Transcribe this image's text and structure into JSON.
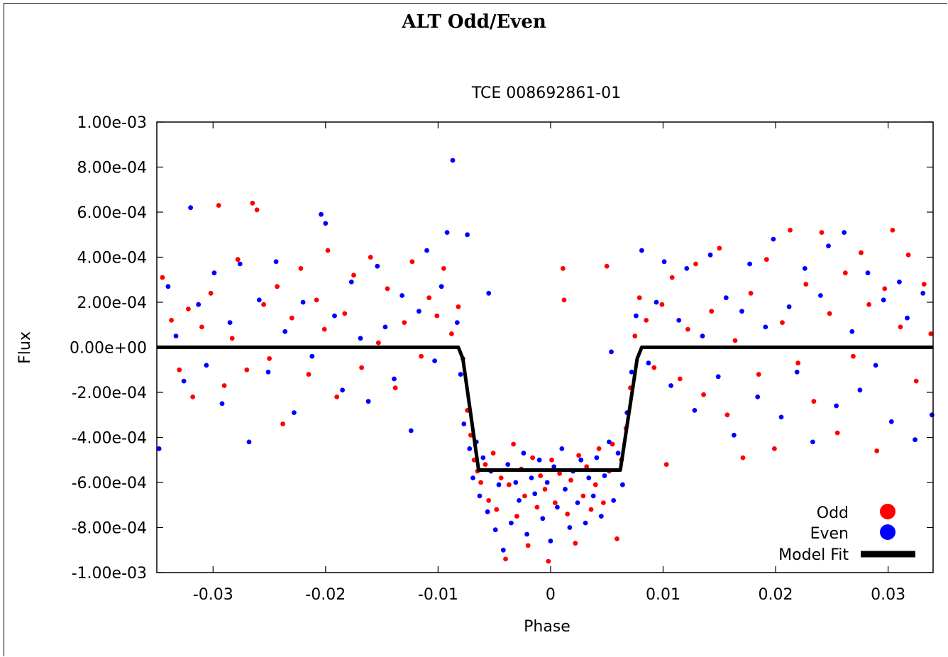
{
  "page": {
    "title": "ALT Odd/Even"
  },
  "chart_data": {
    "type": "scatter",
    "title": "TCE 008692861-01",
    "xlabel": "Phase",
    "ylabel": "Flux",
    "xlim": [
      -0.035,
      0.034
    ],
    "ylim": [
      -0.001,
      0.001
    ],
    "xticks": [
      -0.03,
      -0.02,
      -0.01,
      0,
      0.01,
      0.02,
      0.03
    ],
    "xtick_labels": [
      "-0.03",
      "-0.02",
      "-0.01",
      "0",
      "0.01",
      "0.02",
      "0.03"
    ],
    "yticks": [
      0.001,
      0.0008,
      0.0006,
      0.0004,
      0.0002,
      0,
      -0.0002,
      -0.0004,
      -0.0006,
      -0.0008,
      -0.001
    ],
    "ytick_labels": [
      "1.00e-03",
      "8.00e-04",
      "6.00e-04",
      "4.00e-04",
      "2.00e-04",
      "0.00e+00",
      "-2.00e-04",
      "-4.00e-04",
      "-6.00e-04",
      "-8.00e-04",
      "-1.00e-03"
    ],
    "grid": false,
    "legend_position": "bottom-right",
    "colors": {
      "odd": "#ff0000",
      "even": "#0000ff",
      "model": "#000000"
    },
    "series": [
      {
        "name": "Odd",
        "kind": "points",
        "color": "#ff0000",
        "points": [
          [
            -0.0345,
            0.00031
          ],
          [
            -0.0337,
            0.00012
          ],
          [
            -0.033,
            -0.0001
          ],
          [
            -0.0322,
            0.00017
          ],
          [
            -0.0318,
            -0.00022
          ],
          [
            -0.031,
            9e-05
          ],
          [
            -0.0302,
            0.00024
          ],
          [
            -0.0295,
            0.00063
          ],
          [
            -0.029,
            -0.00017
          ],
          [
            -0.0283,
            4e-05
          ],
          [
            -0.0278,
            0.00039
          ],
          [
            -0.027,
            -0.0001
          ],
          [
            -0.0265,
            0.00064
          ],
          [
            -0.0261,
            0.00061
          ],
          [
            -0.0255,
            0.00019
          ],
          [
            -0.025,
            -5e-05
          ],
          [
            -0.0243,
            0.00027
          ],
          [
            -0.0238,
            -0.00034
          ],
          [
            -0.023,
            0.00013
          ],
          [
            -0.0222,
            0.00035
          ],
          [
            -0.0215,
            -0.00012
          ],
          [
            -0.0208,
            0.00021
          ],
          [
            -0.0201,
            8e-05
          ],
          [
            -0.0198,
            0.00043
          ],
          [
            -0.019,
            -0.00022
          ],
          [
            -0.0183,
            0.00015
          ],
          [
            -0.0175,
            0.00032
          ],
          [
            -0.0168,
            -9e-05
          ],
          [
            -0.016,
            0.0004
          ],
          [
            -0.0153,
            2e-05
          ],
          [
            -0.0145,
            0.00026
          ],
          [
            -0.0138,
            -0.00018
          ],
          [
            -0.013,
            0.00011
          ],
          [
            -0.0123,
            0.00038
          ],
          [
            -0.0115,
            -4e-05
          ],
          [
            -0.0108,
            0.00022
          ],
          [
            -0.0101,
            0.00014
          ],
          [
            -0.0095,
            0.00035
          ],
          [
            -0.0088,
            6e-05
          ],
          [
            -0.0082,
            0.00018
          ],
          [
            -0.0078,
            -5e-05
          ],
          [
            -0.0074,
            -0.00028
          ],
          [
            -0.0071,
            -0.00039
          ],
          [
            -0.0068,
            -0.0005
          ],
          [
            -0.0065,
            -0.00055
          ],
          [
            -0.0062,
            -0.0006
          ],
          [
            -0.0058,
            -0.00052
          ],
          [
            -0.0055,
            -0.00068
          ],
          [
            -0.0051,
            -0.00047
          ],
          [
            -0.0048,
            -0.00072
          ],
          [
            -0.0044,
            -0.00058
          ],
          [
            -0.004,
            -0.00094
          ],
          [
            -0.0037,
            -0.00061
          ],
          [
            -0.0033,
            -0.00043
          ],
          [
            -0.003,
            -0.00075
          ],
          [
            -0.0026,
            -0.00054
          ],
          [
            -0.0023,
            -0.00066
          ],
          [
            -0.002,
            -0.00088
          ],
          [
            -0.0016,
            -0.00049
          ],
          [
            -0.0012,
            -0.00071
          ],
          [
            -0.0009,
            -0.00057
          ],
          [
            -0.0005,
            -0.00063
          ],
          [
            -0.0002,
            -0.00095
          ],
          [
            0.0001,
            -0.0005
          ],
          [
            0.0004,
            -0.00069
          ],
          [
            0.0008,
            -0.00056
          ],
          [
            0.0011,
            0.00035
          ],
          [
            0.0012,
            0.00021
          ],
          [
            0.0015,
            -0.00074
          ],
          [
            0.0018,
            -0.00059
          ],
          [
            0.0022,
            -0.00087
          ],
          [
            0.0025,
            -0.00048
          ],
          [
            0.0029,
            -0.00066
          ],
          [
            0.0032,
            -0.00053
          ],
          [
            0.0036,
            -0.00072
          ],
          [
            0.004,
            -0.00061
          ],
          [
            0.0043,
            -0.00045
          ],
          [
            0.0047,
            -0.00069
          ],
          [
            0.005,
            0.00036
          ],
          [
            0.0052,
            -0.00055
          ],
          [
            0.0055,
            -0.00043
          ],
          [
            0.0059,
            -0.00085
          ],
          [
            0.0063,
            -0.0005
          ],
          [
            0.0067,
            -0.00036
          ],
          [
            0.0071,
            -0.00018
          ],
          [
            0.0075,
            5e-05
          ],
          [
            0.0079,
            0.00022
          ],
          [
            0.0085,
            0.00012
          ],
          [
            0.0092,
            -9e-05
          ],
          [
            0.0099,
            0.00019
          ],
          [
            0.0103,
            -0.00052
          ],
          [
            0.0108,
            0.00031
          ],
          [
            0.0115,
            -0.00014
          ],
          [
            0.0122,
            8e-05
          ],
          [
            0.0129,
            0.00037
          ],
          [
            0.0136,
            -0.00021
          ],
          [
            0.0143,
            0.00016
          ],
          [
            0.015,
            0.00044
          ],
          [
            0.0157,
            -0.0003
          ],
          [
            0.0164,
            3e-05
          ],
          [
            0.0171,
            -0.00049
          ],
          [
            0.0178,
            0.00024
          ],
          [
            0.0185,
            -0.00012
          ],
          [
            0.0192,
            0.00039
          ],
          [
            0.0199,
            -0.00045
          ],
          [
            0.0206,
            0.00011
          ],
          [
            0.0213,
            0.00052
          ],
          [
            0.022,
            -7e-05
          ],
          [
            0.0227,
            0.00028
          ],
          [
            0.0234,
            -0.00024
          ],
          [
            0.0241,
            0.00051
          ],
          [
            0.0248,
            0.00015
          ],
          [
            0.0255,
            -0.00038
          ],
          [
            0.0262,
            0.00033
          ],
          [
            0.0269,
            -4e-05
          ],
          [
            0.0276,
            0.00042
          ],
          [
            0.0283,
            0.00019
          ],
          [
            0.029,
            -0.00046
          ],
          [
            0.0297,
            0.00026
          ],
          [
            0.0304,
            0.00052
          ],
          [
            0.0311,
            9e-05
          ],
          [
            0.0318,
            0.00041
          ],
          [
            0.0325,
            -0.00015
          ],
          [
            0.0332,
            0.00028
          ],
          [
            0.0338,
            6e-05
          ]
        ]
      },
      {
        "name": "Even",
        "kind": "points",
        "color": "#0000ff",
        "points": [
          [
            -0.0348,
            -0.00045
          ],
          [
            -0.034,
            0.00027
          ],
          [
            -0.0333,
            5e-05
          ],
          [
            -0.0326,
            -0.00015
          ],
          [
            -0.032,
            0.00062
          ],
          [
            -0.0313,
            0.00019
          ],
          [
            -0.0306,
            -8e-05
          ],
          [
            -0.0299,
            0.00033
          ],
          [
            -0.0292,
            -0.00025
          ],
          [
            -0.0285,
            0.00011
          ],
          [
            -0.0276,
            0.00037
          ],
          [
            -0.0268,
            -0.00042
          ],
          [
            -0.0259,
            0.00021
          ],
          [
            -0.0251,
            -0.00011
          ],
          [
            -0.0244,
            0.00038
          ],
          [
            -0.0236,
            7e-05
          ],
          [
            -0.0228,
            -0.00029
          ],
          [
            -0.022,
            0.0002
          ],
          [
            -0.0212,
            -4e-05
          ],
          [
            -0.0204,
            0.00059
          ],
          [
            -0.02,
            0.00055
          ],
          [
            -0.0192,
            0.00014
          ],
          [
            -0.0185,
            -0.00019
          ],
          [
            -0.0177,
            0.00029
          ],
          [
            -0.0169,
            4e-05
          ],
          [
            -0.0162,
            -0.00024
          ],
          [
            -0.0154,
            0.00036
          ],
          [
            -0.0147,
            9e-05
          ],
          [
            -0.0139,
            -0.00014
          ],
          [
            -0.0132,
            0.00023
          ],
          [
            -0.0124,
            -0.00037
          ],
          [
            -0.0117,
            0.00016
          ],
          [
            -0.011,
            0.00043
          ],
          [
            -0.0103,
            -6e-05
          ],
          [
            -0.0097,
            0.00027
          ],
          [
            -0.0092,
            0.00051
          ],
          [
            -0.0087,
            0.00083
          ],
          [
            -0.0083,
            0.00011
          ],
          [
            -0.008,
            -0.00012
          ],
          [
            -0.0077,
            -0.00034
          ],
          [
            -0.0074,
            0.0005
          ],
          [
            -0.0072,
            -0.00045
          ],
          [
            -0.0069,
            -0.00058
          ],
          [
            -0.0066,
            -0.00042
          ],
          [
            -0.0063,
            -0.00066
          ],
          [
            -0.006,
            -0.00049
          ],
          [
            -0.0056,
            -0.00073
          ],
          [
            -0.0053,
            -0.00055
          ],
          [
            -0.0055,
            0.00024
          ],
          [
            -0.0049,
            -0.00081
          ],
          [
            -0.0046,
            -0.00061
          ],
          [
            -0.0042,
            -0.0009
          ],
          [
            -0.0038,
            -0.00052
          ],
          [
            -0.0035,
            -0.00078
          ],
          [
            -0.0031,
            -0.0006
          ],
          [
            -0.0028,
            -0.00068
          ],
          [
            -0.0024,
            -0.00047
          ],
          [
            -0.0021,
            -0.00083
          ],
          [
            -0.0017,
            -0.00058
          ],
          [
            -0.0014,
            -0.00065
          ],
          [
            -0.001,
            -0.0005
          ],
          [
            -0.0007,
            -0.00076
          ],
          [
            -0.0003,
            -0.0006
          ],
          [
            0.0,
            -0.00086
          ],
          [
            0.0003,
            -0.00053
          ],
          [
            0.0006,
            -0.00071
          ],
          [
            0.001,
            -0.00045
          ],
          [
            0.0013,
            -0.00063
          ],
          [
            0.0017,
            -0.0008
          ],
          [
            0.002,
            -0.00055
          ],
          [
            0.0024,
            -0.00069
          ],
          [
            0.0027,
            -0.0005
          ],
          [
            0.0031,
            -0.00078
          ],
          [
            0.0034,
            -0.00058
          ],
          [
            0.0038,
            -0.00066
          ],
          [
            0.0041,
            -0.00049
          ],
          [
            0.0045,
            -0.00075
          ],
          [
            0.0048,
            -0.00057
          ],
          [
            0.0052,
            -0.00042
          ],
          [
            0.0056,
            -0.00068
          ],
          [
            0.0054,
            -2e-05
          ],
          [
            0.006,
            -0.00047
          ],
          [
            0.0064,
            -0.00061
          ],
          [
            0.0068,
            -0.00029
          ],
          [
            0.0072,
            -0.00011
          ],
          [
            0.0076,
            0.00014
          ],
          [
            0.0081,
            0.00043
          ],
          [
            0.0087,
            -7e-05
          ],
          [
            0.0094,
            0.0002
          ],
          [
            0.0101,
            0.00038
          ],
          [
            0.0107,
            -0.00017
          ],
          [
            0.0114,
            0.00012
          ],
          [
            0.0121,
            0.00035
          ],
          [
            0.0128,
            -0.00028
          ],
          [
            0.0135,
            5e-05
          ],
          [
            0.0142,
            0.00041
          ],
          [
            0.0149,
            -0.00013
          ],
          [
            0.0156,
            0.00022
          ],
          [
            0.0163,
            -0.00039
          ],
          [
            0.017,
            0.00016
          ],
          [
            0.0177,
            0.00037
          ],
          [
            0.0184,
            -0.00022
          ],
          [
            0.0191,
            9e-05
          ],
          [
            0.0198,
            0.00048
          ],
          [
            0.0205,
            -0.00031
          ],
          [
            0.0212,
            0.00018
          ],
          [
            0.0219,
            -0.00011
          ],
          [
            0.0226,
            0.00035
          ],
          [
            0.0233,
            -0.00042
          ],
          [
            0.024,
            0.00023
          ],
          [
            0.0247,
            0.00045
          ],
          [
            0.0254,
            -0.00026
          ],
          [
            0.0261,
            0.00051
          ],
          [
            0.0268,
            7e-05
          ],
          [
            0.0275,
            -0.00019
          ],
          [
            0.0282,
            0.00033
          ],
          [
            0.0289,
            -8e-05
          ],
          [
            0.0296,
            0.00021
          ],
          [
            0.0303,
            -0.00033
          ],
          [
            0.031,
            0.00029
          ],
          [
            0.0317,
            0.00013
          ],
          [
            0.0324,
            -0.00041
          ],
          [
            0.0331,
            0.00024
          ],
          [
            0.0339,
            -0.0003
          ]
        ]
      },
      {
        "name": "Model Fit",
        "kind": "line",
        "color": "#000000",
        "points": [
          [
            -0.035,
            0.0
          ],
          [
            -0.0082,
            0.0
          ],
          [
            -0.0078,
            -5e-05
          ],
          [
            -0.0064,
            -0.000545
          ],
          [
            0.0062,
            -0.000545
          ],
          [
            0.0077,
            -5e-05
          ],
          [
            0.0081,
            0.0
          ],
          [
            0.034,
            0.0
          ]
        ]
      }
    ]
  }
}
